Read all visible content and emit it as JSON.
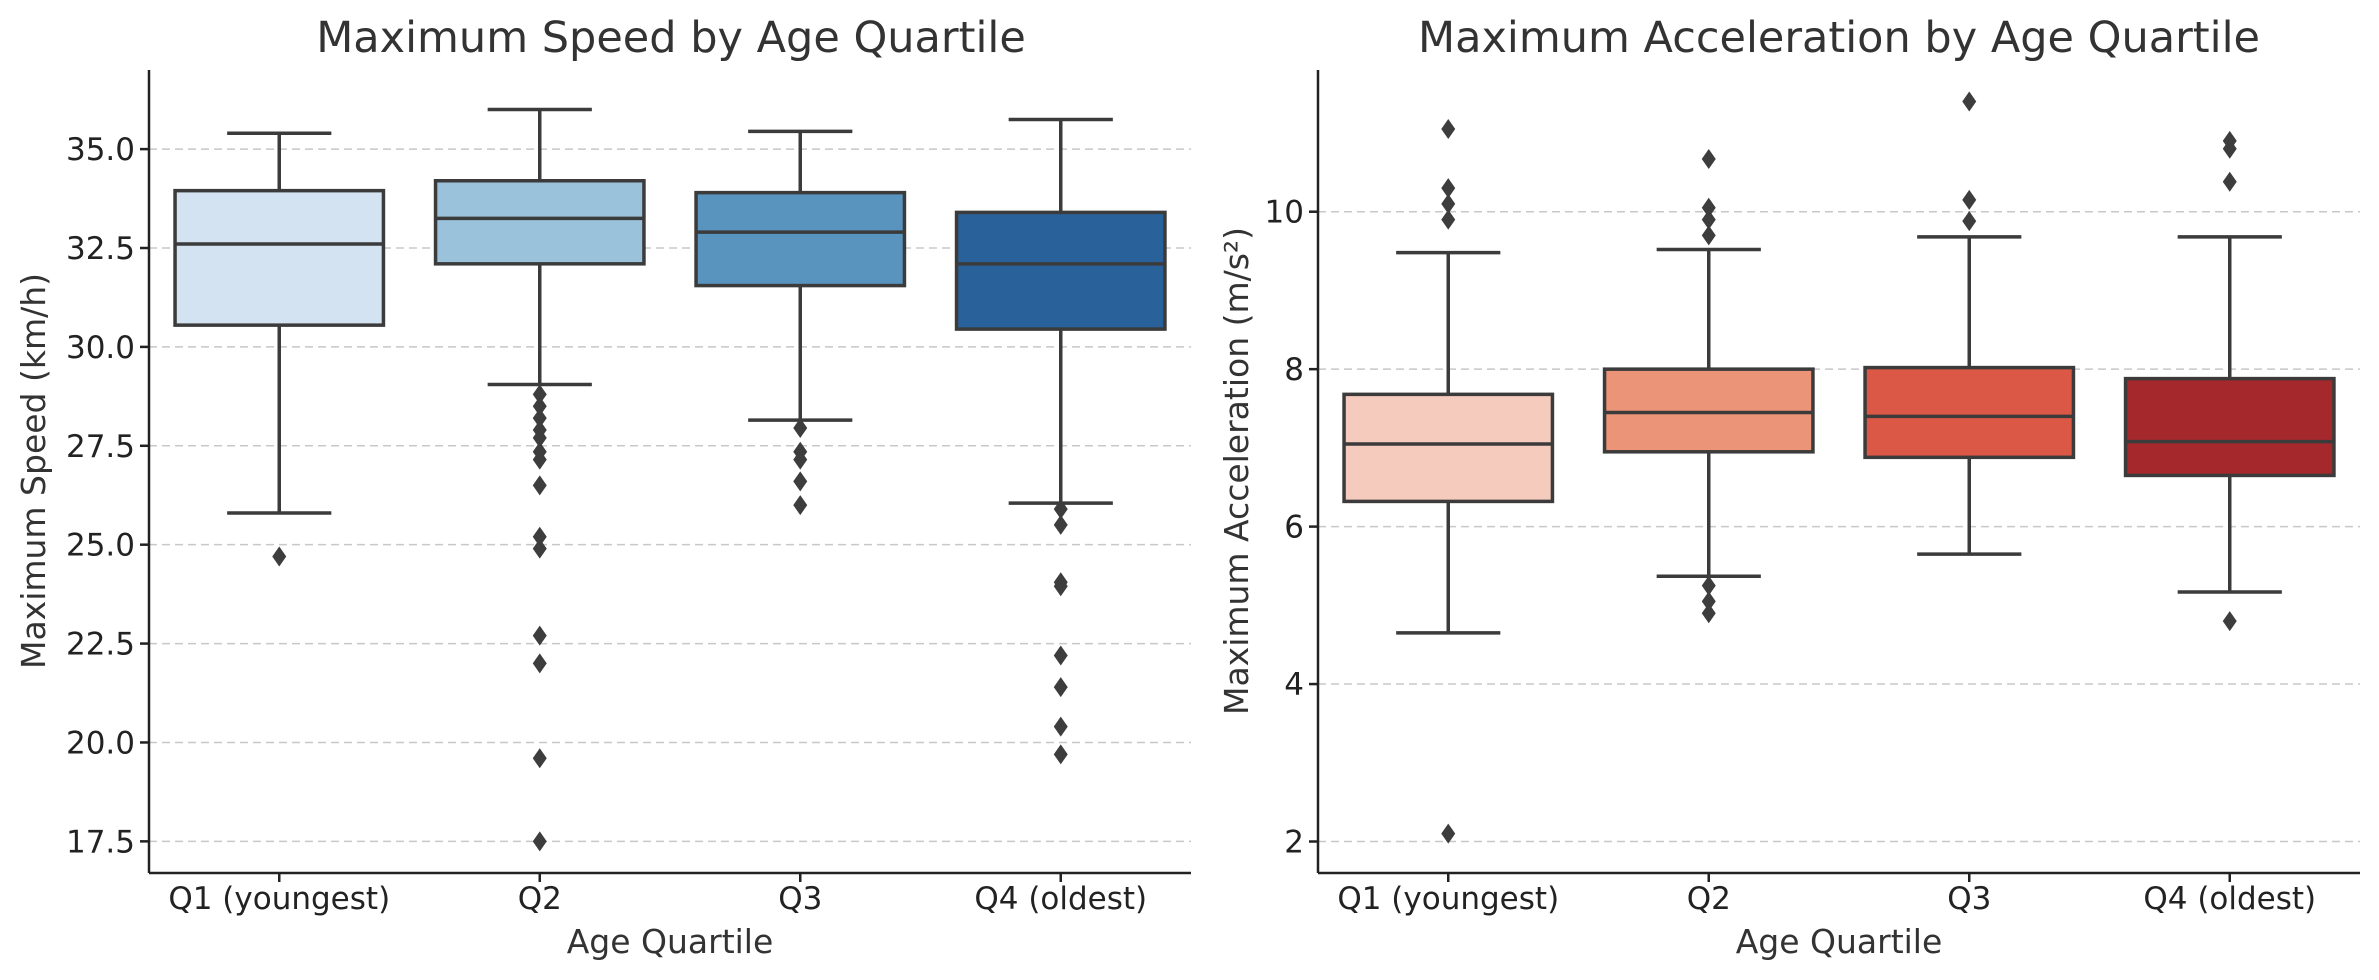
{
  "chart_data": [
    {
      "type": "box",
      "title": "Maximum Speed by Age Quartile",
      "xlabel": "Age Quartile",
      "ylabel": "Maximum Speed (km/h)",
      "ylim": [
        16.7,
        37.0
      ],
      "yticks": [
        17.5,
        20.0,
        22.5,
        25.0,
        27.5,
        30.0,
        32.5,
        35.0
      ],
      "ytick_labels": [
        "17.5",
        "20.0",
        "22.5",
        "25.0",
        "27.5",
        "30.0",
        "32.5",
        "35.0"
      ],
      "grid": "y",
      "categories": [
        "Q1 (youngest)",
        "Q2",
        "Q3",
        "Q4 (oldest)"
      ],
      "boxes": [
        {
          "category": "Q1 (youngest)",
          "whisker_low": 25.8,
          "q1": 30.55,
          "median": 32.6,
          "q3": 33.95,
          "whisker_high": 35.4,
          "outliers": [
            24.7
          ],
          "color": "#d3e3f1"
        },
        {
          "category": "Q2",
          "whisker_low": 29.05,
          "q1": 32.1,
          "median": 33.25,
          "q3": 34.2,
          "whisker_high": 36.0,
          "outliers": [
            28.8,
            28.5,
            28.2,
            27.9,
            27.7,
            27.35,
            27.15,
            26.5,
            25.2,
            24.9,
            22.7,
            22.0,
            19.6,
            17.5
          ],
          "color": "#9ac2da"
        },
        {
          "category": "Q3",
          "whisker_low": 28.15,
          "q1": 31.55,
          "median": 32.9,
          "q3": 33.9,
          "whisker_high": 35.45,
          "outliers": [
            27.95,
            27.35,
            27.15,
            26.6,
            26.0
          ],
          "color": "#5894be"
        },
        {
          "category": "Q4 (oldest)",
          "whisker_low": 26.05,
          "q1": 30.45,
          "median": 32.1,
          "q3": 33.4,
          "whisker_high": 35.75,
          "outliers": [
            25.9,
            25.5,
            24.05,
            23.95,
            22.2,
            21.4,
            20.4,
            19.7
          ],
          "color": "#29629b"
        }
      ]
    },
    {
      "type": "box",
      "title": "Maximum Acceleration by Age Quartile",
      "xlabel": "Age Quartile",
      "ylabel": "Maximum Acceleration (m/s²)",
      "ylim": [
        1.6,
        11.8
      ],
      "yticks": [
        2,
        4,
        6,
        8,
        10
      ],
      "ytick_labels": [
        "2",
        "4",
        "6",
        "8",
        "10"
      ],
      "grid": "y",
      "categories": [
        "Q1 (youngest)",
        "Q2",
        "Q3",
        "Q4 (oldest)"
      ],
      "boxes": [
        {
          "category": "Q1 (youngest)",
          "whisker_low": 4.65,
          "q1": 6.32,
          "median": 7.05,
          "q3": 7.68,
          "whisker_high": 9.48,
          "outliers": [
            11.05,
            10.3,
            10.1,
            9.9,
            2.1
          ],
          "color": "#f4cbbd"
        },
        {
          "category": "Q2",
          "whisker_low": 5.37,
          "q1": 6.95,
          "median": 7.45,
          "q3": 8.0,
          "whisker_high": 9.52,
          "outliers": [
            10.67,
            10.05,
            9.9,
            9.7,
            5.25,
            5.05,
            4.9
          ],
          "color": "#ec9478"
        },
        {
          "category": "Q3",
          "whisker_low": 5.65,
          "q1": 6.88,
          "median": 7.4,
          "q3": 8.02,
          "whisker_high": 9.68,
          "outliers": [
            11.4,
            10.15,
            9.88
          ],
          "color": "#dc5846"
        },
        {
          "category": "Q4 (oldest)",
          "whisker_low": 5.17,
          "q1": 6.65,
          "median": 7.08,
          "q3": 7.88,
          "whisker_high": 9.68,
          "outliers": [
            10.9,
            10.8,
            10.38,
            4.8
          ],
          "color": "#a5282c"
        }
      ]
    }
  ]
}
